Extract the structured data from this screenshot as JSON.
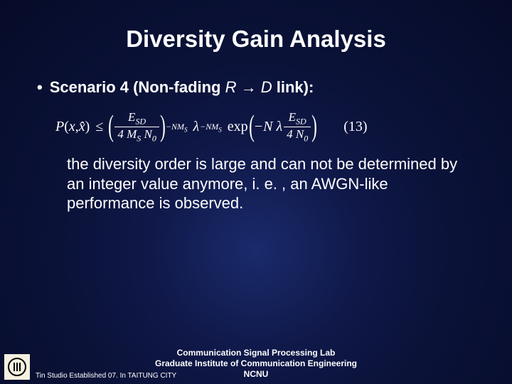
{
  "title": "Diversity Gain Analysis",
  "bullet": {
    "prefix": "Scenario 4 (Non-fading ",
    "var1": "R",
    "arrow": " → ",
    "var2": "D",
    "suffix": " link):"
  },
  "formula": {
    "lhs_P": "P",
    "lhs_open": "(",
    "lhs_x": "x",
    "lhs_comma": ", ",
    "lhs_xhat": "x̂",
    "lhs_close": ")",
    "leq": "≤",
    "frac1_num": "E",
    "frac1_num_sub": "SD",
    "frac1_den_a": "4 M",
    "frac1_den_sub": "S",
    "frac1_den_b": " N",
    "frac1_den_b_sub": "0",
    "exp1_a": "−NM",
    "exp1_b": "S",
    "lambda": "λ",
    "exp2_a": "−NM",
    "exp2_b": "S",
    "exp_label": "exp",
    "inner_prefix": "−N λ",
    "frac2_num": "E",
    "frac2_num_sub": "SD",
    "frac2_den_a": "4 N",
    "frac2_den_sub": "0",
    "eqnum": "(13)"
  },
  "body": "the diversity order is large and can not be determined by an integer value anymore, i. e. , an AWGN-like performance is observed.",
  "footer": {
    "line1": "Communication Signal Processing Lab",
    "line2": "Graduate Institute of Communication Engineering",
    "line3": "NCNU",
    "subline": "Tin Studio Established 07. In TAITUNG CITY"
  }
}
